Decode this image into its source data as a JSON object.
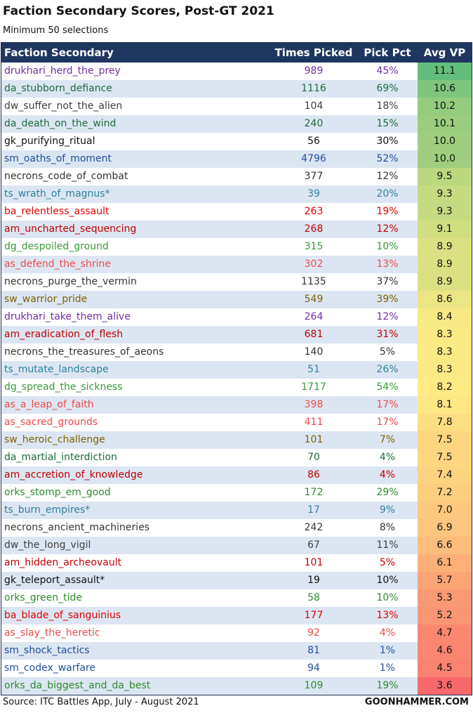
{
  "header": {
    "title": "Faction Secondary Scores, Post-GT 2021",
    "subtitle": "Minimum 50 selections"
  },
  "table": {
    "columns": [
      "Faction Secondary",
      "Times Picked",
      "Pick Pct",
      "Avg VP"
    ],
    "rows": [
      {
        "name": "drukhari_herd_the_prey",
        "times": "989",
        "pct": "45%",
        "avg": "11.1",
        "color": "#7030a0"
      },
      {
        "name": "da_stubborn_defiance",
        "times": "1116",
        "pct": "69%",
        "avg": "10.6",
        "color": "#1e6b3a"
      },
      {
        "name": "dw_suffer_not_the_alien",
        "times": "104",
        "pct": "18%",
        "avg": "10.2",
        "color": "#404040"
      },
      {
        "name": "da_death_on_the_wind",
        "times": "240",
        "pct": "15%",
        "avg": "10.1",
        "color": "#1e6b3a"
      },
      {
        "name": "gk_purifying_ritual",
        "times": "56",
        "pct": "30%",
        "avg": "10.0",
        "color": "#111111"
      },
      {
        "name": "sm_oaths_of_moment",
        "times": "4796",
        "pct": "52%",
        "avg": "10.0",
        "color": "#1f4e9c"
      },
      {
        "name": "necrons_code_of_combat",
        "times": "377",
        "pct": "12%",
        "avg": "9.5",
        "color": "#333333"
      },
      {
        "name": "ts_wrath_of_magnus*",
        "times": "39",
        "pct": "20%",
        "avg": "9.3",
        "color": "#2f7f9f"
      },
      {
        "name": "ba_relentless_assault",
        "times": "263",
        "pct": "19%",
        "avg": "9.3",
        "color": "#e00000"
      },
      {
        "name": "am_uncharted_sequencing",
        "times": "268",
        "pct": "12%",
        "avg": "9.1",
        "color": "#c00000"
      },
      {
        "name": "dg_despoiled_ground",
        "times": "315",
        "pct": "10%",
        "avg": "8.9",
        "color": "#3a9a3a"
      },
      {
        "name": "as_defend_the_shrine",
        "times": "302",
        "pct": "13%",
        "avg": "8.9",
        "color": "#f04848"
      },
      {
        "name": "necrons_purge_the_vermin",
        "times": "1135",
        "pct": "37%",
        "avg": "8.9",
        "color": "#333333"
      },
      {
        "name": "sw_warrior_pride",
        "times": "549",
        "pct": "39%",
        "avg": "8.6",
        "color": "#7f6000"
      },
      {
        "name": "drukhari_take_them_alive",
        "times": "264",
        "pct": "12%",
        "avg": "8.4",
        "color": "#7030a0"
      },
      {
        "name": "am_eradication_of_flesh",
        "times": "681",
        "pct": "31%",
        "avg": "8.3",
        "color": "#c00000"
      },
      {
        "name": "necrons_the_treasures_of_aeons",
        "times": "140",
        "pct": "5%",
        "avg": "8.3",
        "color": "#333333"
      },
      {
        "name": "ts_mutate_landscape",
        "times": "51",
        "pct": "26%",
        "avg": "8.3",
        "color": "#2f7f9f"
      },
      {
        "name": "dg_spread_the_sickness",
        "times": "1717",
        "pct": "54%",
        "avg": "8.2",
        "color": "#3a9a3a"
      },
      {
        "name": "as_a_leap_of_faith",
        "times": "398",
        "pct": "17%",
        "avg": "8.1",
        "color": "#f04848"
      },
      {
        "name": "as_sacred_grounds",
        "times": "411",
        "pct": "17%",
        "avg": "7.8",
        "color": "#f04848"
      },
      {
        "name": "sw_heroic_challenge",
        "times": "101",
        "pct": "7%",
        "avg": "7.5",
        "color": "#7f6000"
      },
      {
        "name": "da_martial_interdiction",
        "times": "70",
        "pct": "4%",
        "avg": "7.5",
        "color": "#1e6b3a"
      },
      {
        "name": "am_accretion_of_knowledge",
        "times": "86",
        "pct": "4%",
        "avg": "7.4",
        "color": "#c00000"
      },
      {
        "name": "orks_stomp_em_good",
        "times": "172",
        "pct": "29%",
        "avg": "7.2",
        "color": "#2e8b2e"
      },
      {
        "name": "ts_burn_empires*",
        "times": "17",
        "pct": "9%",
        "avg": "7.0",
        "color": "#2f7f9f"
      },
      {
        "name": "necrons_ancient_machineries",
        "times": "242",
        "pct": "8%",
        "avg": "6.9",
        "color": "#333333"
      },
      {
        "name": "dw_the_long_vigil",
        "times": "67",
        "pct": "11%",
        "avg": "6.6",
        "color": "#404040"
      },
      {
        "name": "am_hidden_archeovault",
        "times": "101",
        "pct": "5%",
        "avg": "6.1",
        "color": "#c00000"
      },
      {
        "name": "gk_teleport_assault*",
        "times": "19",
        "pct": "10%",
        "avg": "5.7",
        "color": "#111111"
      },
      {
        "name": "orks_green_tide",
        "times": "58",
        "pct": "10%",
        "avg": "5.3",
        "color": "#2e8b2e"
      },
      {
        "name": "ba_blade_of_sanguinius",
        "times": "177",
        "pct": "13%",
        "avg": "5.2",
        "color": "#e00000"
      },
      {
        "name": "as_slay_the_heretic",
        "times": "92",
        "pct": "4%",
        "avg": "4.7",
        "color": "#f04848"
      },
      {
        "name": "sm_shock_tactics",
        "times": "81",
        "pct": "1%",
        "avg": "4.6",
        "color": "#1f4e9c"
      },
      {
        "name": "sm_codex_warfare",
        "times": "94",
        "pct": "1%",
        "avg": "4.5",
        "color": "#1f4e9c"
      },
      {
        "name": "orks_da_biggest_and_da_best",
        "times": "109",
        "pct": "19%",
        "avg": "3.6",
        "color": "#2e8b2e"
      }
    ]
  },
  "footer": {
    "source": "Source: ITC Battles App, July - August 2021",
    "brand": "GOONHAMMER.COM"
  }
}
